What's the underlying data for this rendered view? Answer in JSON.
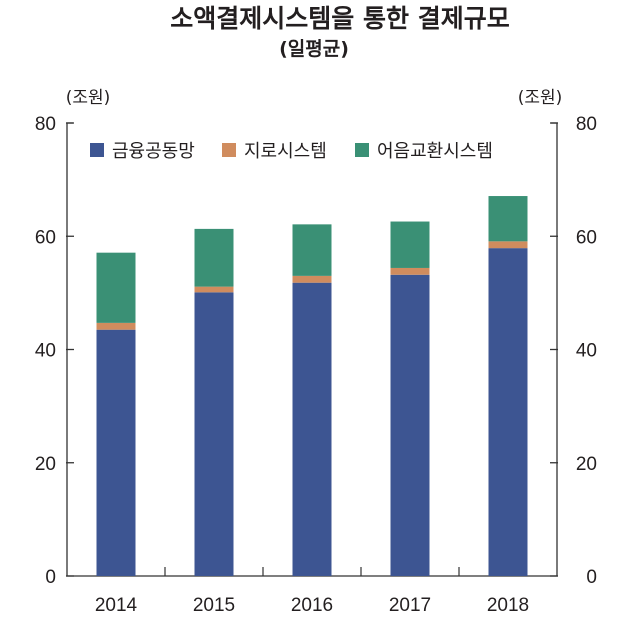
{
  "chart_data": {
    "type": "bar",
    "stacked": true,
    "title": "소액결제시스템을 통한 결제규모",
    "subtitle": "(일평균)",
    "ylabel_left": "(조원)",
    "ylabel_right": "(조원)",
    "ylim": [
      0,
      80
    ],
    "yticks": [
      0,
      20,
      40,
      60,
      80
    ],
    "grid": false,
    "legend_position": "top-left",
    "categories": [
      "2014",
      "2015",
      "2016",
      "2017",
      "2018"
    ],
    "series": [
      {
        "name": "금융공동망",
        "color": "#3d5592",
        "values": [
          43.5,
          50.1,
          51.8,
          53.2,
          57.9
        ]
      },
      {
        "name": "지로시스템",
        "color": "#d08c5e",
        "values": [
          1.2,
          1.0,
          1.2,
          1.2,
          1.2
        ]
      },
      {
        "name": "어음교환시스템",
        "color": "#3a9075",
        "values": [
          12.4,
          10.2,
          9.1,
          8.2,
          8.0
        ]
      }
    ]
  }
}
